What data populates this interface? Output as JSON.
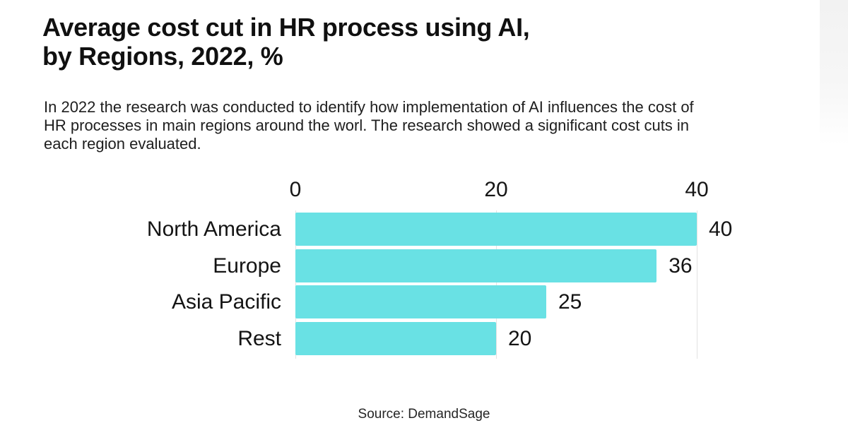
{
  "page": {
    "title_line1": "Average cost cut in HR process using AI,",
    "title_line2": "by Regions, 2022, %",
    "subtitle_lines": [
      "In 2022 the research was conducted to identify how implementation of AI influences the cost of",
      "HR processes in main regions around the worl. The research showed a significant cost cuts in",
      "each region evaluated."
    ],
    "source": "Source: DemandSage"
  },
  "colors": {
    "bar": "#69E1E4",
    "gridline": "#e2e2e2",
    "title_text": "#101010",
    "body_text": "#1e1e1e"
  },
  "chart_data": {
    "type": "bar",
    "orientation": "horizontal",
    "title": "Average cost cut in HR process using AI, by Regions, 2022, %",
    "categories": [
      "North America",
      "Europe",
      "Asia Pacific",
      "Rest"
    ],
    "values": [
      40,
      36,
      25,
      20
    ],
    "unit": "%",
    "xlim": [
      0,
      40
    ],
    "xticks": [
      0,
      20,
      40
    ],
    "value_labels_shown": true,
    "legend": "none",
    "grid": "vertical lines at ticks",
    "source": "Source: DemandSage"
  }
}
